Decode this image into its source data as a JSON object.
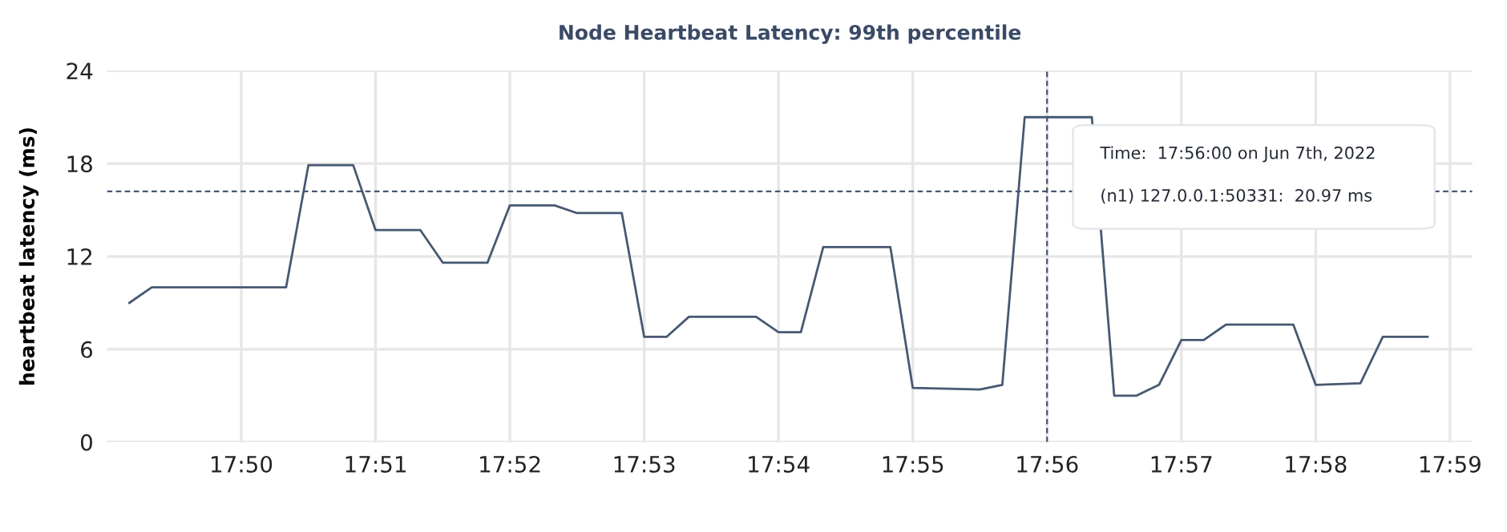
{
  "chart_data": {
    "type": "line",
    "title": "Node Heartbeat Latency: 99th percentile",
    "ylabel": "heartbeat latency (ms)",
    "x": [
      "2022-06-07T17:49:10",
      "2022-06-07T17:49:20",
      "2022-06-07T17:50:20",
      "2022-06-07T17:50:30",
      "2022-06-07T17:50:50",
      "2022-06-07T17:51:00",
      "2022-06-07T17:51:20",
      "2022-06-07T17:51:30",
      "2022-06-07T17:51:50",
      "2022-06-07T17:52:00",
      "2022-06-07T17:52:20",
      "2022-06-07T17:52:30",
      "2022-06-07T17:52:50",
      "2022-06-07T17:53:00",
      "2022-06-07T17:53:10",
      "2022-06-07T17:53:20",
      "2022-06-07T17:53:50",
      "2022-06-07T17:54:00",
      "2022-06-07T17:54:10",
      "2022-06-07T17:54:20",
      "2022-06-07T17:54:50",
      "2022-06-07T17:55:00",
      "2022-06-07T17:55:30",
      "2022-06-07T17:55:40",
      "2022-06-07T17:55:50",
      "2022-06-07T17:56:00",
      "2022-06-07T17:56:20",
      "2022-06-07T17:56:30",
      "2022-06-07T17:56:40",
      "2022-06-07T17:56:50",
      "2022-06-07T17:57:00",
      "2022-06-07T17:57:10",
      "2022-06-07T17:57:20",
      "2022-06-07T17:57:50",
      "2022-06-07T17:58:00",
      "2022-06-07T17:58:20",
      "2022-06-07T17:58:30",
      "2022-06-07T17:58:50"
    ],
    "series": [
      {
        "color": "#475872",
        "values": [
          9.0,
          10.0,
          10.0,
          17.9,
          17.9,
          13.7,
          13.7,
          11.6,
          11.6,
          15.3,
          15.3,
          14.8,
          14.8,
          6.8,
          6.8,
          8.1,
          8.1,
          7.1,
          7.1,
          12.6,
          12.6,
          3.5,
          3.4,
          3.7,
          21.0,
          21.0,
          21.0,
          3.0,
          3.0,
          3.7,
          6.6,
          6.6,
          7.6,
          7.6,
          3.7,
          3.8,
          6.8,
          6.8
        ]
      }
    ],
    "xlim": [
      "2022-06-07T17:49:00",
      "2022-06-07T17:59:10"
    ],
    "xticks": [
      {
        "value": "2022-06-07T17:50",
        "label": "17:50"
      },
      {
        "value": "2022-06-07T17:51",
        "label": "17:51"
      },
      {
        "value": "2022-06-07T17:52",
        "label": "17:52"
      },
      {
        "value": "2022-06-07T17:53",
        "label": "17:53"
      },
      {
        "value": "2022-06-07T17:54",
        "label": "17:54"
      },
      {
        "value": "2022-06-07T17:55",
        "label": "17:55"
      },
      {
        "value": "2022-06-07T17:56",
        "label": "17:56"
      },
      {
        "value": "2022-06-07T17:57",
        "label": "17:57"
      },
      {
        "value": "2022-06-07T17:58",
        "label": "17:58"
      },
      {
        "value": "2022-06-07T17:59",
        "label": "17:59"
      }
    ],
    "ylim": [
      0,
      24
    ],
    "yticks": [
      0,
      6,
      12,
      18,
      24
    ],
    "grid": true,
    "line_style": "solid",
    "marker": "none",
    "ref_lines": [
      {
        "axis": "y",
        "value": 16.2,
        "color": "#475872",
        "line_style": "dashed"
      },
      {
        "axis": "x",
        "value": "2022-06-07T17:56:00",
        "color": "#475872",
        "line_style": "dashed"
      }
    ],
    "annotations": [
      "Time:  17:56:00 on Jun 7th, 2022",
      "(n1) 127.0.0.1:50331:  20.97 ms"
    ]
  }
}
